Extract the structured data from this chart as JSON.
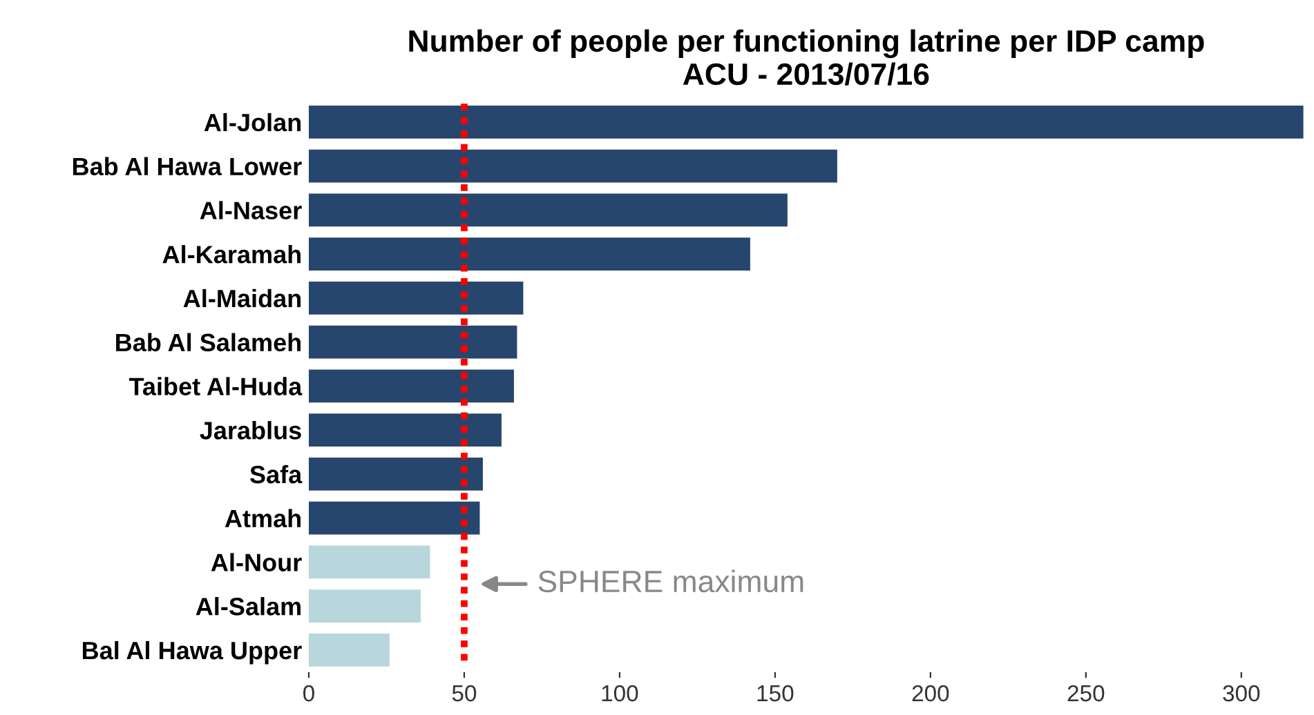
{
  "chart_data": {
    "type": "bar",
    "orientation": "horizontal",
    "title": "Number of people per functioning latrine per IDP camp\nACU - 2013/07/16",
    "categories": [
      "Al-Jolan",
      "Bab Al Hawa Lower",
      "Al-Naser",
      "Al-Karamah",
      "Al-Maidan",
      "Bab Al Salameh",
      "Taibet Al-Huda",
      "Jarablus",
      "Safa",
      "Atmah",
      "Al-Nour",
      "Al-Salam",
      "Bal Al Hawa Upper"
    ],
    "values": [
      320,
      170,
      154,
      142,
      69,
      67,
      66,
      62,
      56,
      55,
      39,
      36,
      26
    ],
    "colors": [
      "#26466d",
      "#26466d",
      "#26466d",
      "#26466d",
      "#26466d",
      "#26466d",
      "#26466d",
      "#26466d",
      "#26466d",
      "#26466d",
      "#b7d7dc",
      "#b7d7dc",
      "#b7d7dc"
    ],
    "xlim": [
      0,
      320
    ],
    "xticks": [
      0,
      50,
      100,
      150,
      200,
      250,
      300
    ],
    "ref_lines": [
      {
        "axis": "x",
        "value": 50,
        "label": "SPHERE maximum",
        "color": "#ff0000",
        "line_style": "dotted"
      }
    ],
    "grid": false,
    "legend": false
  }
}
